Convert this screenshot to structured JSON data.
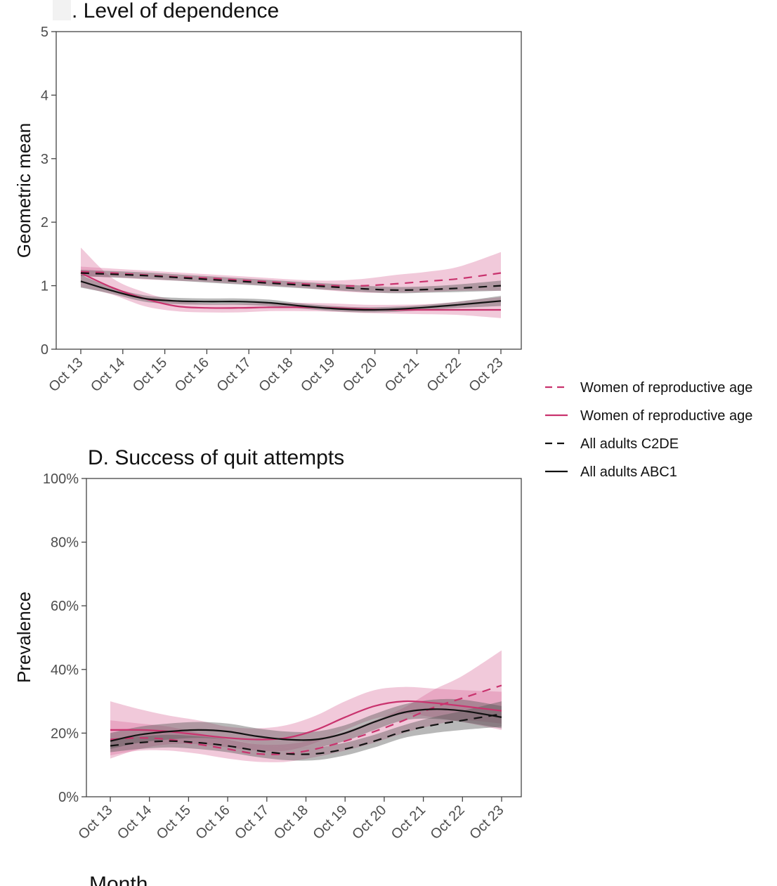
{
  "colors": {
    "pink": "#c9336e",
    "pink_band": "#d9729e",
    "black": "#111111",
    "grey_band": "#555555",
    "axis": "#444444",
    "tick_label": "#4d4d4d",
    "cover_patch": "#f2f2f2"
  },
  "legend": {
    "placement": "right",
    "items": [
      {
        "label": "Women of reproductive age",
        "color": "#c9336e",
        "dash": "dashed"
      },
      {
        "label": "Women of reproductive age",
        "color": "#c9336e",
        "dash": "solid"
      },
      {
        "label": "All adults C2DE",
        "color": "#111111",
        "dash": "dashed"
      },
      {
        "label": "All adults ABC1",
        "color": "#111111",
        "dash": "solid"
      }
    ]
  },
  "chart_data": [
    {
      "type": "line",
      "title": ". Level of dependence",
      "xlabel": "",
      "ylabel": "Geometric mean",
      "ylim": [
        0,
        5
      ],
      "y_ticks": [
        0,
        1,
        2,
        3,
        4,
        5
      ],
      "y_tick_labels": [
        "0",
        "1",
        "2",
        "3",
        "4",
        "5"
      ],
      "x_ticks": [
        "Oct 13",
        "Oct 14",
        "Oct 15",
        "Oct 16",
        "Oct 17",
        "Oct 18",
        "Oct 19",
        "Oct 20",
        "Oct 21",
        "Oct 22",
        "Oct 23"
      ],
      "x": [
        2013.75,
        2014.5,
        2015.25,
        2016,
        2016.75,
        2017.5,
        2018.25,
        2019,
        2019.75,
        2020.5,
        2021.25,
        2022,
        2022.75,
        2023.75
      ],
      "grid": false,
      "series": [
        {
          "legend_index": 0,
          "color": "#c9336e",
          "dash": "dashed",
          "values": [
            1.22,
            1.2,
            1.17,
            1.14,
            1.12,
            1.09,
            1.06,
            1.03,
            1.0,
            1.0,
            1.03,
            1.07,
            1.11,
            1.2
          ],
          "lower": [
            1.15,
            1.13,
            1.1,
            1.08,
            1.06,
            1.03,
            1.0,
            0.97,
            0.92,
            0.89,
            0.89,
            0.9,
            0.92,
            0.92
          ],
          "upper": [
            1.3,
            1.27,
            1.24,
            1.21,
            1.18,
            1.15,
            1.12,
            1.09,
            1.08,
            1.11,
            1.17,
            1.22,
            1.3,
            1.53
          ]
        },
        {
          "legend_index": 1,
          "color": "#c9336e",
          "dash": "solid",
          "values": [
            1.2,
            0.97,
            0.8,
            0.68,
            0.65,
            0.65,
            0.66,
            0.66,
            0.65,
            0.63,
            0.62,
            0.62,
            0.62,
            0.62
          ],
          "lower": [
            0.98,
            0.86,
            0.68,
            0.6,
            0.58,
            0.58,
            0.6,
            0.6,
            0.59,
            0.57,
            0.56,
            0.55,
            0.54,
            0.49
          ],
          "upper": [
            1.6,
            1.12,
            0.9,
            0.77,
            0.72,
            0.72,
            0.73,
            0.73,
            0.72,
            0.7,
            0.7,
            0.71,
            0.75,
            0.82
          ]
        },
        {
          "legend_index": 2,
          "color": "#111111",
          "dash": "dashed",
          "values": [
            1.2,
            1.18,
            1.16,
            1.13,
            1.1,
            1.07,
            1.04,
            1.01,
            0.98,
            0.95,
            0.93,
            0.94,
            0.96,
            1.0
          ],
          "lower": [
            1.15,
            1.13,
            1.11,
            1.08,
            1.05,
            1.02,
            0.99,
            0.96,
            0.93,
            0.9,
            0.88,
            0.89,
            0.9,
            0.92
          ],
          "upper": [
            1.25,
            1.23,
            1.21,
            1.18,
            1.15,
            1.12,
            1.09,
            1.06,
            1.03,
            1.0,
            0.98,
            0.99,
            1.02,
            1.08
          ]
        },
        {
          "legend_index": 3,
          "color": "#111111",
          "dash": "solid",
          "values": [
            1.07,
            0.92,
            0.8,
            0.76,
            0.75,
            0.75,
            0.73,
            0.68,
            0.64,
            0.62,
            0.63,
            0.66,
            0.7,
            0.76
          ],
          "lower": [
            0.97,
            0.87,
            0.75,
            0.71,
            0.7,
            0.7,
            0.68,
            0.64,
            0.6,
            0.58,
            0.59,
            0.62,
            0.65,
            0.68
          ],
          "upper": [
            1.17,
            0.97,
            0.85,
            0.81,
            0.8,
            0.8,
            0.78,
            0.72,
            0.68,
            0.66,
            0.67,
            0.7,
            0.75,
            0.84
          ]
        }
      ]
    },
    {
      "type": "line",
      "title": "D. Success of quit attempts",
      "xlabel": "Month",
      "ylabel": "Prevalence",
      "ylim": [
        0,
        100
      ],
      "y_ticks": [
        0,
        20,
        40,
        60,
        80,
        100
      ],
      "y_tick_labels": [
        "0%",
        "20%",
        "40%",
        "60%",
        "80%",
        "100%"
      ],
      "x_ticks": [
        "Oct 13",
        "Oct 14",
        "Oct 15",
        "Oct 16",
        "Oct 17",
        "Oct 18",
        "Oct 19",
        "Oct 20",
        "Oct 21",
        "Oct 22",
        "Oct 23"
      ],
      "x": [
        2013.75,
        2014.5,
        2015.25,
        2016,
        2016.75,
        2017.5,
        2018.25,
        2019,
        2019.75,
        2020.5,
        2021.25,
        2022,
        2022.75,
        2023.75
      ],
      "grid": false,
      "series": [
        {
          "legend_index": 0,
          "color": "#c9336e",
          "dash": "dashed",
          "values": [
            18,
            18.5,
            18,
            16.5,
            15,
            13.5,
            13.5,
            15,
            17.5,
            20.5,
            24,
            28,
            31,
            35
          ],
          "lower": [
            13,
            14.5,
            14.5,
            13.5,
            12,
            11,
            11,
            12.5,
            14.5,
            17,
            20,
            22.5,
            24,
            23
          ],
          "upper": [
            24,
            23,
            22,
            20,
            18,
            16.5,
            16.5,
            18,
            20.5,
            24,
            28,
            33.5,
            38,
            46
          ]
        },
        {
          "legend_index": 1,
          "color": "#c9336e",
          "dash": "solid",
          "values": [
            21,
            21,
            20.5,
            19.5,
            18.5,
            18,
            18.5,
            21,
            25,
            28.5,
            30,
            29.5,
            28.5,
            27
          ],
          "lower": [
            12,
            15,
            16.5,
            16.5,
            15.5,
            14.5,
            14.5,
            17,
            21,
            24.5,
            26,
            25,
            23.5,
            21
          ],
          "upper": [
            30,
            27.5,
            25.5,
            24,
            22,
            21.5,
            22.5,
            25.5,
            30,
            33.5,
            34.5,
            34,
            33.5,
            33
          ]
        },
        {
          "legend_index": 2,
          "color": "#111111",
          "dash": "dashed",
          "values": [
            16,
            17,
            17.5,
            17,
            16,
            14.5,
            13.5,
            13.5,
            15,
            17.5,
            20.5,
            22.5,
            24,
            26
          ],
          "lower": [
            14,
            15,
            15.5,
            15,
            14,
            12.5,
            11.5,
            11.5,
            13,
            15.5,
            18.5,
            20,
            21,
            22
          ],
          "upper": [
            18,
            19,
            19.5,
            19,
            18,
            16.5,
            15.5,
            15.5,
            17,
            19.5,
            22.5,
            25,
            27,
            30
          ]
        },
        {
          "legend_index": 3,
          "color": "#111111",
          "dash": "solid",
          "values": [
            17.5,
            19.5,
            20.5,
            21,
            20.5,
            19,
            18,
            18,
            20,
            23.5,
            26.5,
            27.5,
            27,
            25
          ],
          "lower": [
            15,
            17,
            18,
            18.5,
            18,
            16.5,
            15.5,
            15.5,
            17.5,
            21,
            24,
            24.5,
            23.5,
            21.5
          ],
          "upper": [
            20,
            22,
            23,
            23.5,
            23,
            21.5,
            20.5,
            20.5,
            22.5,
            26,
            29,
            30.5,
            30.5,
            28.5
          ]
        }
      ]
    }
  ]
}
